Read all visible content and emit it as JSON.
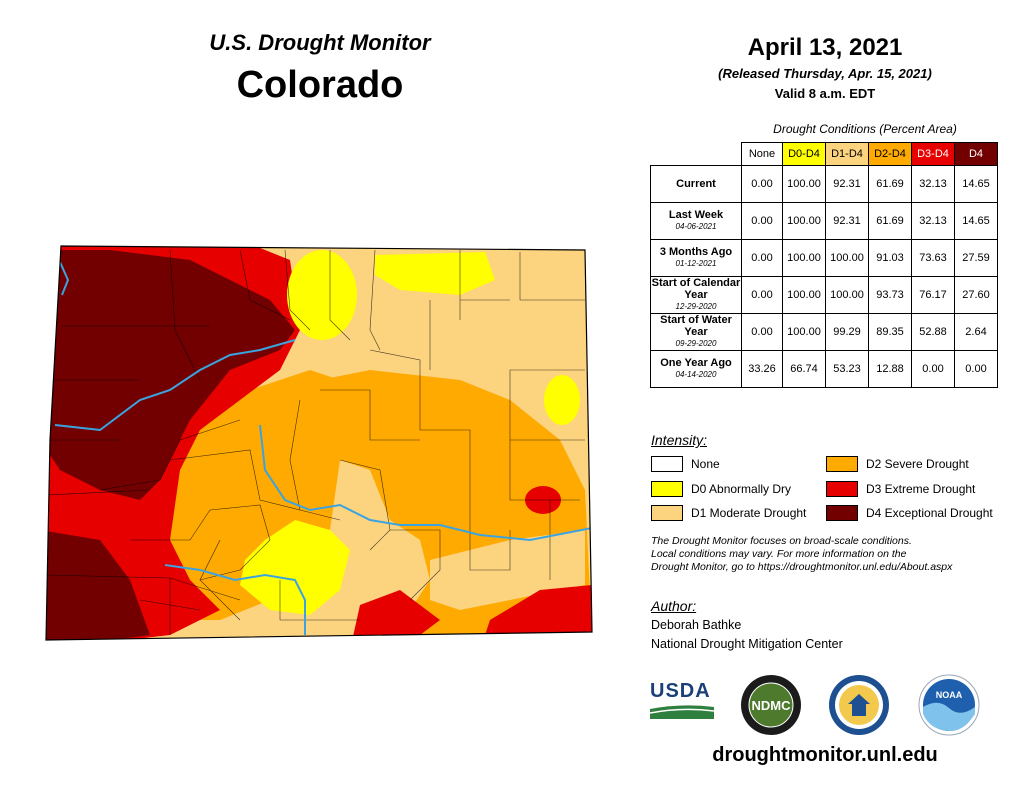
{
  "header": {
    "title": "U.S. Drought Monitor",
    "state": "Colorado",
    "date": "April 13, 2021",
    "released": "(Released Thursday, Apr. 15, 2021)",
    "valid": "Valid 8 a.m. EDT"
  },
  "table": {
    "caption": "Drought Conditions (Percent Area)",
    "columns": [
      "None",
      "D0-D4",
      "D1-D4",
      "D2-D4",
      "D3-D4",
      "D4"
    ],
    "rows": [
      {
        "label": "Current",
        "date": "",
        "values": [
          "0.00",
          "100.00",
          "92.31",
          "61.69",
          "32.13",
          "14.65"
        ]
      },
      {
        "label": "Last Week",
        "date": "04-06-2021",
        "values": [
          "0.00",
          "100.00",
          "92.31",
          "61.69",
          "32.13",
          "14.65"
        ]
      },
      {
        "label": "3 Months Ago",
        "date": "01-12-2021",
        "values": [
          "0.00",
          "100.00",
          "100.00",
          "91.03",
          "73.63",
          "27.59"
        ]
      },
      {
        "label": "Start of Calendar Year",
        "date": "12-29-2020",
        "values": [
          "0.00",
          "100.00",
          "100.00",
          "93.73",
          "76.17",
          "27.60"
        ]
      },
      {
        "label": "Start of Water Year",
        "date": "09-29-2020",
        "values": [
          "0.00",
          "100.00",
          "99.29",
          "89.35",
          "52.88",
          "2.64"
        ]
      },
      {
        "label": "One Year Ago",
        "date": "04-14-2020",
        "values": [
          "33.26",
          "66.74",
          "53.23",
          "12.88",
          "0.00",
          "0.00"
        ]
      }
    ]
  },
  "legend": {
    "title": "Intensity:",
    "items": [
      {
        "label": "None",
        "color": "#ffffff"
      },
      {
        "label": "D0 Abnormally Dry",
        "color": "#ffff00"
      },
      {
        "label": "D1 Moderate Drought",
        "color": "#fcd37f"
      },
      {
        "label": "D2 Severe Drought",
        "color": "#ffaa00"
      },
      {
        "label": "D3 Extreme Drought",
        "color": "#e60000"
      },
      {
        "label": "D4 Exceptional Drought",
        "color": "#730000"
      }
    ]
  },
  "note": {
    "line1": "The Drought Monitor focuses on broad-scale conditions.",
    "line2": "Local conditions may vary. For more information on the",
    "line3": "Drought Monitor, go to https://droughtmonitor.unl.edu/About.aspx"
  },
  "author": {
    "title": "Author:",
    "name": "Deborah Bathke",
    "org": "National Drought Mitigation Center"
  },
  "logos": {
    "usda": "USDA",
    "ndmc": "NDMC",
    "noaa": "NOAA"
  },
  "website": "droughtmonitor.unl.edu",
  "colors": {
    "d0": "#ffff00",
    "d1": "#fcd37f",
    "d2": "#ffaa00",
    "d3": "#e60000",
    "d4": "#730000",
    "river": "#3ba3e0"
  }
}
